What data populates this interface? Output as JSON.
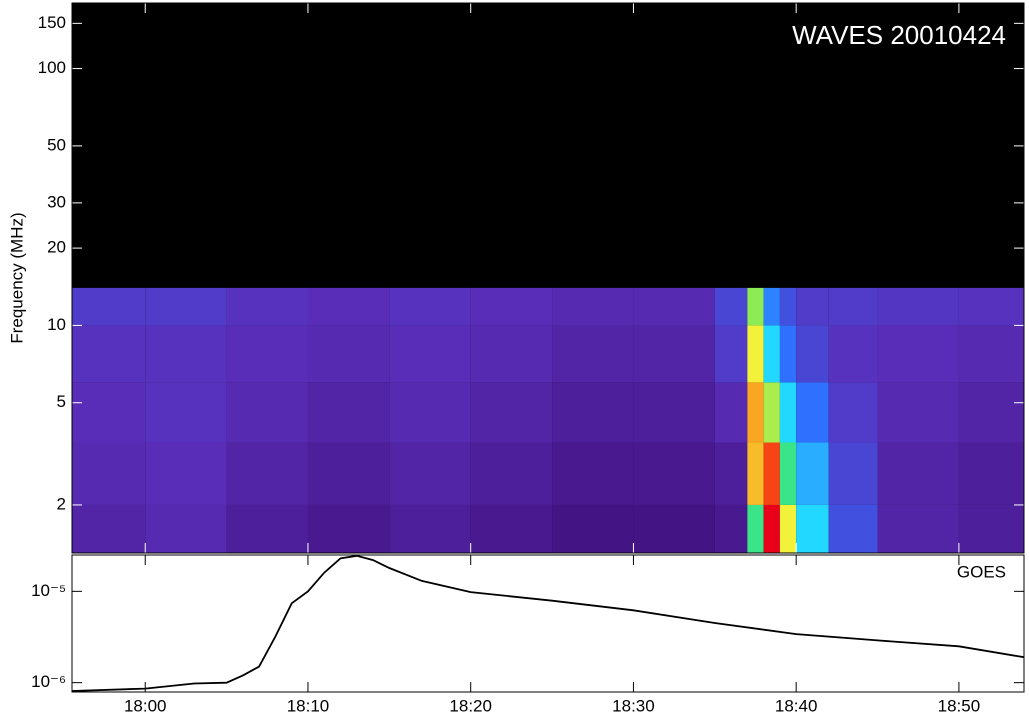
{
  "chart_data": [
    {
      "type": "heatmap",
      "title": "WAVES 20010424",
      "y_label": "Frequency (MHz)",
      "yscale": "log",
      "ylim": [
        1.3,
        180
      ],
      "yticks": [
        2,
        5,
        10,
        20,
        30,
        50,
        100,
        150
      ],
      "xlim": [
        "17:55:30",
        "18:54"
      ],
      "x_bins": [
        "17:55:30",
        "18:00",
        "18:05",
        "18:10",
        "18:15",
        "18:20",
        "18:25",
        "18:30",
        "18:35",
        "18:37",
        "18:38",
        "18:39",
        "18:40",
        "18:42",
        "18:45",
        "18:50",
        "18:54"
      ],
      "y_bins": [
        1.3,
        2,
        3.5,
        6,
        10,
        14
      ],
      "colors": [
        "#000000",
        "#3a0a6e",
        "#5a2db8",
        "#2f6cff",
        "#23d8ff",
        "#3ee86a",
        "#f2f23a",
        "#ff6a10",
        "#e8001a"
      ],
      "values": [
        [
          0.22,
          0.24,
          0.2,
          0.18,
          0.2,
          0.18,
          0.16,
          0.16,
          0.18,
          0.6,
          1.0,
          0.75,
          0.5,
          0.32,
          0.22,
          0.2
        ],
        [
          0.24,
          0.25,
          0.22,
          0.2,
          0.22,
          0.2,
          0.18,
          0.18,
          0.2,
          0.8,
          0.92,
          0.6,
          0.45,
          0.3,
          0.22,
          0.2
        ],
        [
          0.25,
          0.26,
          0.24,
          0.22,
          0.24,
          0.22,
          0.2,
          0.2,
          0.24,
          0.82,
          0.7,
          0.5,
          0.38,
          0.28,
          0.24,
          0.22
        ],
        [
          0.26,
          0.26,
          0.25,
          0.24,
          0.25,
          0.24,
          0.22,
          0.22,
          0.28,
          0.75,
          0.5,
          0.38,
          0.3,
          0.26,
          0.25,
          0.24
        ],
        [
          0.28,
          0.28,
          0.26,
          0.25,
          0.26,
          0.25,
          0.24,
          0.24,
          0.3,
          0.68,
          0.4,
          0.32,
          0.28,
          0.28,
          0.27,
          0.26
        ]
      ]
    },
    {
      "type": "line",
      "label": "GOES",
      "color": "#000000",
      "yscale": "log",
      "ylim": [
        7.9e-07,
        2.5e-05
      ],
      "yticks": [
        {
          "value": 1e-06,
          "label": "10⁻⁶"
        },
        {
          "value": 1e-05,
          "label": "10⁻⁵"
        }
      ],
      "xlim": [
        "17:55:30",
        "18:54"
      ],
      "xticks": [
        "18:00",
        "18:10",
        "18:20",
        "18:30",
        "18:40",
        "18:50"
      ],
      "x": [
        "17:55:30",
        "18:00",
        "18:03",
        "18:05",
        "18:06",
        "18:07",
        "18:08",
        "18:09",
        "18:10",
        "18:11",
        "18:12",
        "18:13",
        "18:14",
        "18:15",
        "18:17",
        "18:20",
        "18:25",
        "18:30",
        "18:35",
        "18:40",
        "18:45",
        "18:50",
        "18:54"
      ],
      "values": [
        8.1e-07,
        8.6e-07,
        9.8e-07,
        1e-06,
        1.2e-06,
        1.5e-06,
        3.2e-06,
        7.4e-06,
        1e-05,
        1.6e-05,
        2.3e-05,
        2.45e-05,
        2.2e-05,
        1.8e-05,
        1.3e-05,
        9.8e-06,
        7.9e-06,
        6.2e-06,
        4.5e-06,
        3.4e-06,
        2.9e-06,
        2.5e-06,
        1.9e-06
      ]
    }
  ]
}
